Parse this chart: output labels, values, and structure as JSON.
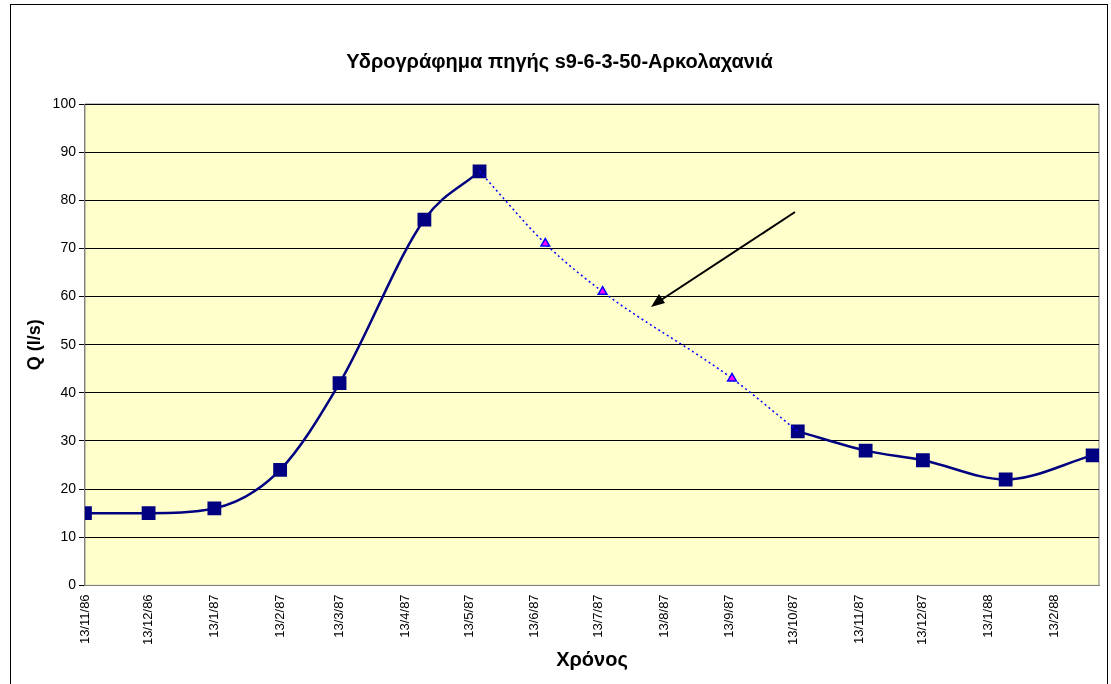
{
  "chart_data": {
    "type": "line",
    "title": "Υδρογράφημα πηγής s9-6-3-50-Αρκολαχανιά",
    "xlabel": "Χρόνος",
    "ylabel": "Q (l/s)",
    "xlim": [
      "1986-11-13",
      "1988-03-05"
    ],
    "xticks": [
      {
        "value": "1986-11-13",
        "label": "13/11/86"
      },
      {
        "value": "1986-12-13",
        "label": "13/12/86"
      },
      {
        "value": "1987-01-13",
        "label": "13/1/87"
      },
      {
        "value": "1987-02-13",
        "label": "13/2/87"
      },
      {
        "value": "1987-03-13",
        "label": "13/3/87"
      },
      {
        "value": "1987-04-13",
        "label": "13/4/87"
      },
      {
        "value": "1987-05-13",
        "label": "13/5/87"
      },
      {
        "value": "1987-06-13",
        "label": "13/6/87"
      },
      {
        "value": "1987-07-13",
        "label": "13/7/87"
      },
      {
        "value": "1987-08-13",
        "label": "13/8/87"
      },
      {
        "value": "1987-09-13",
        "label": "13/9/87"
      },
      {
        "value": "1987-10-13",
        "label": "13/10/87"
      },
      {
        "value": "1987-11-13",
        "label": "13/11/87"
      },
      {
        "value": "1987-12-13",
        "label": "13/12/87"
      },
      {
        "value": "1988-01-13",
        "label": "13/1/88"
      },
      {
        "value": "1988-02-13",
        "label": "13/2/88"
      }
    ],
    "ylim": [
      0,
      100
    ],
    "yticks": [
      0,
      10,
      20,
      30,
      40,
      50,
      60,
      70,
      80,
      90,
      100
    ],
    "grid": "y",
    "legend": false,
    "series": [
      {
        "type": "line",
        "color": "#0000ff",
        "line_style": "dotted",
        "marker": "triangle",
        "colors": [
          "#ff00ff",
          "#ff00ff",
          "#ff00ff",
          "#ff00ff",
          "#ff00ff"
        ],
        "x": [
          "1987-05-18",
          "1987-06-18",
          "1987-07-15",
          "1987-09-14",
          "1987-10-15"
        ],
        "values": [
          86,
          71,
          61,
          43,
          32
        ]
      },
      {
        "type": "line",
        "color": "#000080",
        "line_style": "solid",
        "marker": "square",
        "x": [
          "1986-11-13",
          "1986-12-13",
          "1987-01-13",
          "1987-02-13",
          "1987-03-13",
          "1987-04-22",
          "1987-05-18",
          "1987-06-18",
          "1987-10-15",
          "1987-11-16",
          "1987-12-13",
          "1988-01-21",
          "1988-03-02"
        ],
        "values": [
          15,
          15,
          16,
          24,
          42,
          76,
          86,
          null,
          32,
          28,
          26,
          22,
          27
        ]
      }
    ]
  }
}
